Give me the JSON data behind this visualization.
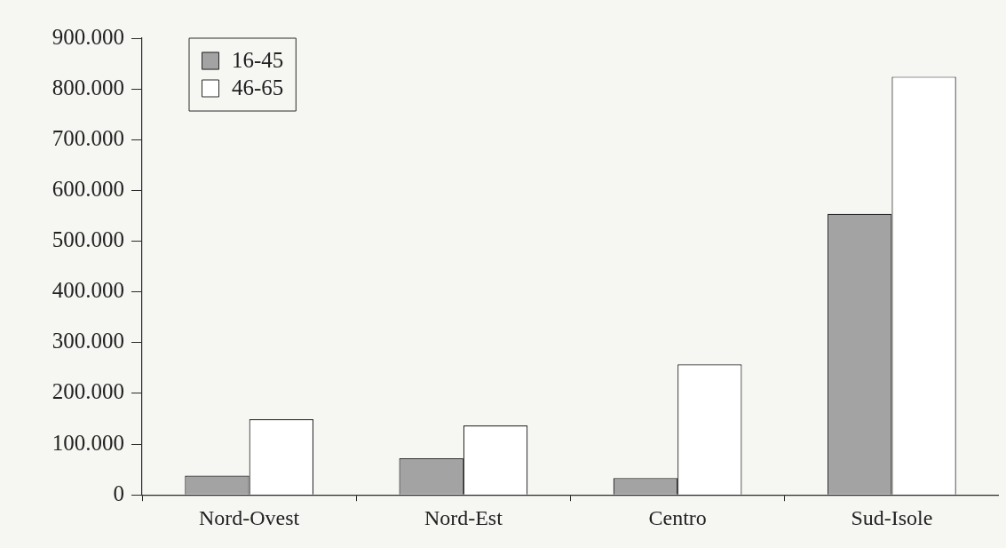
{
  "chart_data": {
    "type": "bar",
    "categories": [
      "Nord-Ovest",
      "Nord-Est",
      "Centro",
      "Sud-Isole"
    ],
    "series": [
      {
        "name": "16-45",
        "color": "#a3a3a3",
        "values": [
          38000,
          72000,
          33000,
          554000
        ]
      },
      {
        "name": "46-65",
        "color": "#ffffff",
        "values": [
          149000,
          137000,
          257000,
          824000
        ]
      }
    ],
    "ylim": [
      0,
      900000
    ],
    "yticks": [
      0,
      {
        "value": 100000,
        "label": "100.000"
      },
      {
        "value": 200000,
        "label": "200.000"
      },
      {
        "value": 300000,
        "label": "300.000"
      },
      {
        "value": 400000,
        "label": "400.000"
      },
      {
        "value": 500000,
        "label": "500.000"
      },
      {
        "value": 600000,
        "label": "600.000"
      },
      {
        "value": 700000,
        "label": "700.000"
      },
      {
        "value": 800000,
        "label": "800.000"
      },
      {
        "value": 900000,
        "label": "900.000"
      }
    ],
    "grid": false,
    "legend": "top left"
  }
}
